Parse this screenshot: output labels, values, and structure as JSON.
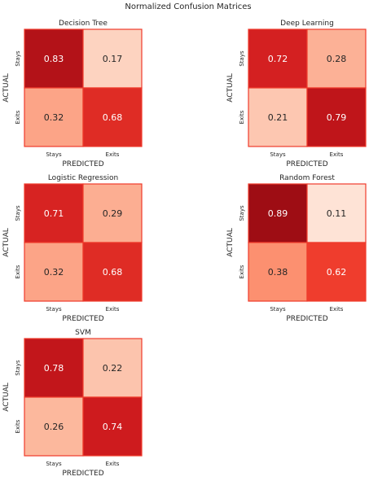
{
  "figure_title": "Normalized Confusion Matrices",
  "colors": {
    "cmap_low": "#fff5f0",
    "cmap_mid": "#fb6a4a",
    "cmap_high": "#67000d",
    "cell_border": "#ef3b2c",
    "text_dark": "#262626",
    "text_light": "#ffffff"
  },
  "chart_data": [
    {
      "type": "heatmap",
      "title": "Decision Tree",
      "xlabel": "PREDICTED",
      "ylabel": "ACTUAL",
      "x_categories": [
        "Stays",
        "Exits"
      ],
      "y_categories": [
        "Stays",
        "Exits"
      ],
      "values": [
        [
          0.83,
          0.17
        ],
        [
          0.32,
          0.68
        ]
      ],
      "vmin": 0.0,
      "vmax": 1.0
    },
    {
      "type": "heatmap",
      "title": "Deep Learning",
      "xlabel": "PREDICTED",
      "ylabel": "ACTUAL",
      "x_categories": [
        "Stays",
        "Exits"
      ],
      "y_categories": [
        "Stays",
        "Exits"
      ],
      "values": [
        [
          0.72,
          0.28
        ],
        [
          0.21,
          0.79
        ]
      ],
      "vmin": 0.0,
      "vmax": 1.0
    },
    {
      "type": "heatmap",
      "title": "Logistic Regression",
      "xlabel": "PREDICTED",
      "ylabel": "ACTUAL",
      "x_categories": [
        "Stays",
        "Exits"
      ],
      "y_categories": [
        "Stays",
        "Exits"
      ],
      "values": [
        [
          0.71,
          0.29
        ],
        [
          0.32,
          0.68
        ]
      ],
      "vmin": 0.0,
      "vmax": 1.0
    },
    {
      "type": "heatmap",
      "title": "Random Forest",
      "xlabel": "PREDICTED",
      "ylabel": "ACTUAL",
      "x_categories": [
        "Stays",
        "Exits"
      ],
      "y_categories": [
        "Stays",
        "Exits"
      ],
      "values": [
        [
          0.89,
          0.11
        ],
        [
          0.38,
          0.62
        ]
      ],
      "vmin": 0.0,
      "vmax": 1.0
    },
    {
      "type": "heatmap",
      "title": "SVM",
      "xlabel": "PREDICTED",
      "ylabel": "ACTUAL",
      "x_categories": [
        "Stays",
        "Exits"
      ],
      "y_categories": [
        "Stays",
        "Exits"
      ],
      "values": [
        [
          0.78,
          0.22
        ],
        [
          0.26,
          0.74
        ]
      ],
      "vmin": 0.0,
      "vmax": 1.0
    }
  ]
}
